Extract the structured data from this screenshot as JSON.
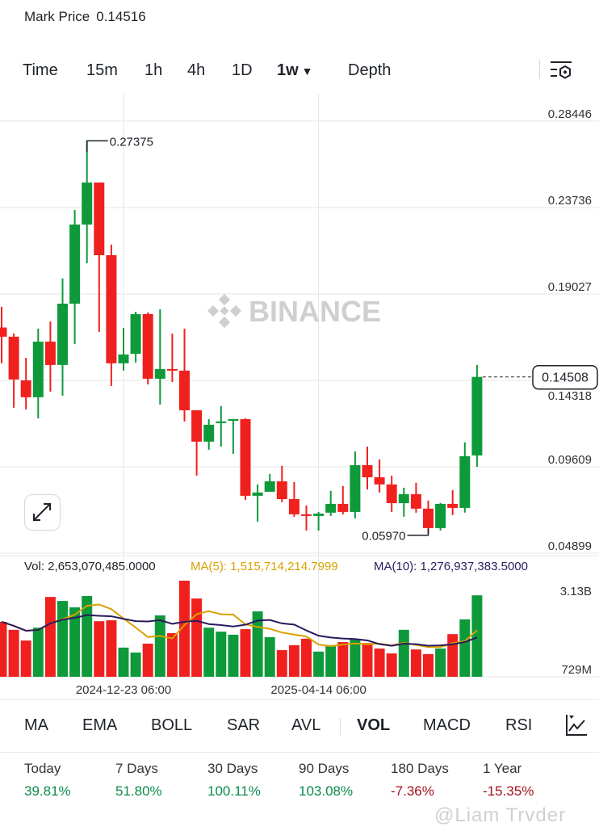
{
  "header": {
    "mark_price_label": "Mark Price",
    "mark_price_value": "0.14516"
  },
  "timeframes": [
    {
      "label": "Time",
      "active": false
    },
    {
      "label": "15m",
      "active": false
    },
    {
      "label": "1h",
      "active": false
    },
    {
      "label": "4h",
      "active": false
    },
    {
      "label": "1D",
      "active": false
    },
    {
      "label": "1w",
      "active": true
    },
    {
      "label": "Depth",
      "active": false
    }
  ],
  "toolbar": {
    "settings_icon": "chart-settings-icon",
    "expand_icon": "expand-icon"
  },
  "watermark": "BINANCE",
  "colors": {
    "up": "#0e9a3a",
    "down": "#f0201f",
    "ma5": "#d9a100",
    "ma10": "#2a1a5e",
    "grid": "#e6e6e6"
  },
  "chart_data": [
    {
      "type": "candlestick",
      "interval": "1w",
      "price_axis_ticks": [
        "0.28446",
        "0.23736",
        "0.19027",
        "0.14318",
        "0.09609",
        "0.04899"
      ],
      "ylim": [
        0.04899,
        0.28446
      ],
      "date_ticks": [
        {
          "index": 10,
          "label": "2024-12-23 06:00"
        },
        {
          "index": 26,
          "label": "2025-04-14 06:00"
        }
      ],
      "high_label": {
        "index": 7,
        "value": "0.27375"
      },
      "low_label": {
        "index": 35,
        "value": "0.05970"
      },
      "last_price": "0.14508",
      "ohlc": [
        [
          0.172,
          0.1833,
          0.1525,
          0.167
        ],
        [
          0.167,
          0.1687,
          0.1283,
          0.1437
        ],
        [
          0.1432,
          0.1555,
          0.1274,
          0.134
        ],
        [
          0.134,
          0.1714,
          0.1225,
          0.1643
        ],
        [
          0.1643,
          0.1753,
          0.1371,
          0.1516
        ],
        [
          0.1516,
          0.1987,
          0.1349,
          0.185
        ],
        [
          0.185,
          0.2361,
          0.163,
          0.2281
        ],
        [
          0.2281,
          0.27375,
          0.207,
          0.251
        ],
        [
          0.251,
          0.251,
          0.1696,
          0.2114
        ],
        [
          0.2114,
          0.2172,
          0.1401,
          0.1525
        ],
        [
          0.1525,
          0.1718,
          0.1485,
          0.1573
        ],
        [
          0.1577,
          0.1806,
          0.1529,
          0.1793
        ],
        [
          0.1793,
          0.1802,
          0.141,
          0.1441
        ],
        [
          0.1441,
          0.1819,
          0.13,
          0.1494
        ],
        [
          0.1494,
          0.1687,
          0.1423,
          0.1485
        ],
        [
          0.1485,
          0.1714,
          0.1208,
          0.1269
        ],
        [
          0.1269,
          0.1269,
          0.0913,
          0.1098
        ],
        [
          0.1098,
          0.1221,
          0.1054,
          0.119
        ],
        [
          0.1199,
          0.1292,
          0.1071,
          0.1208
        ],
        [
          0.1212,
          0.1221,
          0.1032,
          0.1221
        ],
        [
          0.1221,
          0.1225,
          0.0781,
          0.0803
        ],
        [
          0.0803,
          0.0865,
          0.0662,
          0.0821
        ],
        [
          0.0825,
          0.0922,
          0.0825,
          0.0882
        ],
        [
          0.0882,
          0.0966,
          0.0768,
          0.0785
        ],
        [
          0.0785,
          0.0878,
          0.0689,
          0.0702
        ],
        [
          0.0702,
          0.075,
          0.0614,
          0.0693
        ],
        [
          0.0693,
          0.0715,
          0.0614,
          0.0706
        ],
        [
          0.0711,
          0.083,
          0.0693,
          0.0759
        ],
        [
          0.0759,
          0.0856,
          0.0702,
          0.0715
        ],
        [
          0.0715,
          0.1045,
          0.068,
          0.097
        ],
        [
          0.097,
          0.1071,
          0.0838,
          0.0904
        ],
        [
          0.0904,
          0.1001,
          0.0821,
          0.0865
        ],
        [
          0.0865,
          0.0913,
          0.0715,
          0.0763
        ],
        [
          0.0763,
          0.0847,
          0.0689,
          0.0812
        ],
        [
          0.0812,
          0.0874,
          0.0711,
          0.0733
        ],
        [
          0.0733,
          0.0777,
          0.0597,
          0.0627
        ],
        [
          0.0627,
          0.0764,
          0.0614,
          0.0759
        ],
        [
          0.0759,
          0.0834,
          0.0698,
          0.0737
        ],
        [
          0.0737,
          0.1094,
          0.0711,
          0.1019
        ],
        [
          0.1023,
          0.1516,
          0.0961,
          0.14508
        ]
      ]
    },
    {
      "type": "bar",
      "unit": "B",
      "axis_labels": [
        "3.13B",
        "729M"
      ],
      "ylim": [
        0,
        3.13
      ],
      "legend": {
        "vol": "Vol: 2,653,070,485.0000",
        "ma5": "MA(5): 1,515,714,214.7999",
        "ma10": "MA(10): 1,276,937,383.5000"
      },
      "values": [
        1.79,
        1.53,
        1.18,
        1.6,
        2.6,
        2.47,
        2.26,
        2.63,
        1.81,
        1.84,
        0.95,
        0.79,
        1.08,
        2.0,
        1.42,
        3.13,
        2.55,
        1.6,
        1.47,
        1.37,
        1.55,
        2.13,
        1.29,
        0.87,
        1.03,
        1.24,
        0.82,
        1.03,
        1.13,
        1.21,
        1.1,
        0.92,
        0.76,
        1.53,
        0.89,
        0.74,
        0.92,
        1.39,
        1.87,
        2.653
      ]
    }
  ],
  "indicators": [
    {
      "label": "MA",
      "active": false
    },
    {
      "label": "EMA",
      "active": false
    },
    {
      "label": "BOLL",
      "active": false
    },
    {
      "label": "SAR",
      "active": false
    },
    {
      "label": "AVL",
      "active": false
    },
    {
      "label": "VOL",
      "active": true
    },
    {
      "label": "MACD",
      "active": false
    },
    {
      "label": "RSI",
      "active": false
    }
  ],
  "indicator_icon": "indicator-chart-icon",
  "stats": [
    {
      "label": "Today",
      "value": "39.81%",
      "positive": true
    },
    {
      "label": "7 Days",
      "value": "51.80%",
      "positive": true
    },
    {
      "label": "30 Days",
      "value": "100.11%",
      "positive": true
    },
    {
      "label": "90 Days",
      "value": "103.08%",
      "positive": true
    },
    {
      "label": "180 Days",
      "value": "-7.36%",
      "positive": false
    },
    {
      "label": "1 Year",
      "value": "-15.35%",
      "positive": false
    }
  ],
  "footer_watermark": "@Liam Trvder"
}
